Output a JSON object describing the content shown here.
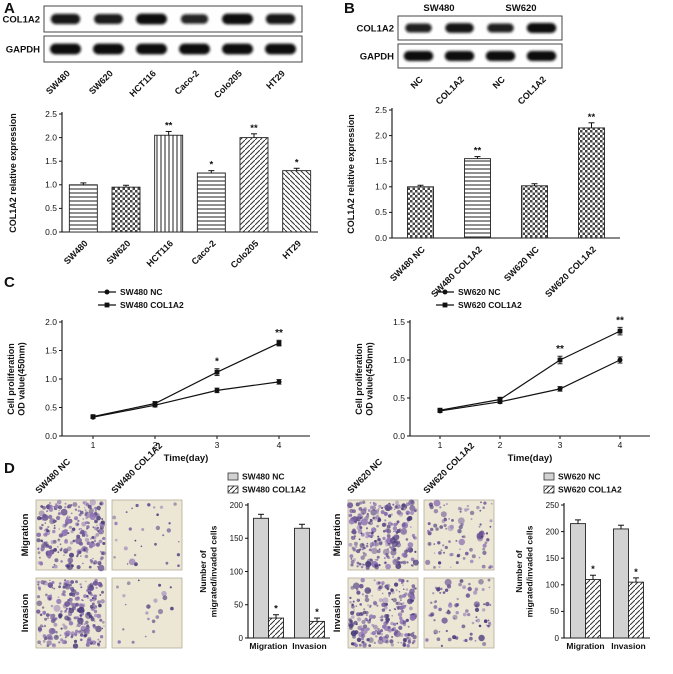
{
  "figure": {
    "panel_letters": {
      "A": "A",
      "B": "B",
      "C": "C",
      "D": "D"
    }
  },
  "colors": {
    "nc_fill": "#d2d2d2",
    "micro_bg": "#ece7d4",
    "stain_palette": [
      "#4a3b7c",
      "#6b5295",
      "#8f74b5"
    ]
  },
  "panelA": {
    "blot": {
      "rows": [
        {
          "label": "COL1A2",
          "intensities": [
            0.85,
            0.8,
            1.0,
            0.65,
            1.0,
            0.85
          ]
        },
        {
          "label": "GAPDH",
          "intensities": [
            1,
            1,
            1,
            1,
            1,
            1
          ]
        }
      ],
      "lane_labels": [
        "SW480",
        "SW620",
        "HCT116",
        "Caco-2",
        "Colo205",
        "HT29"
      ]
    }
  },
  "panelB": {
    "blot": {
      "group_labels": [
        "SW480",
        "SW620"
      ],
      "rows": [
        {
          "label": "COL1A2",
          "intensities": [
            0.7,
            0.9,
            0.7,
            1.0
          ]
        },
        {
          "label": "GAPDH",
          "intensities": [
            1,
            1,
            1,
            1
          ]
        }
      ],
      "lane_labels": [
        "NC",
        "COL1A2",
        "NC",
        "COL1A2"
      ]
    }
  },
  "panelD": {
    "blocks": [
      {
        "col_labels": [
          "SW480 NC",
          "SW480 COL1A2"
        ],
        "row_labels": [
          "Migration",
          "Invasion"
        ],
        "cell_densities": [
          260,
          30,
          240,
          22
        ]
      },
      {
        "col_labels": [
          "SW620 NC",
          "SW620 COL1A2"
        ],
        "row_labels": [
          "Migration",
          "Invasion"
        ],
        "cell_densities": [
          260,
          95,
          235,
          85
        ]
      }
    ]
  },
  "chart_data": [
    {
      "id": "panel-a-bar",
      "type": "bar",
      "categories": [
        "SW480",
        "SW620",
        "HCT116",
        "Caco-2",
        "Colo205",
        "HT29"
      ],
      "values": [
        1.0,
        0.95,
        2.05,
        1.25,
        2.0,
        1.3
      ],
      "errors": [
        0.04,
        0.04,
        0.08,
        0.05,
        0.08,
        0.05
      ],
      "significance": [
        "",
        "",
        "**",
        "*",
        "**",
        "*"
      ],
      "bar_patterns": [
        "hlines",
        "checker",
        "vlines",
        "hlines",
        "diagl",
        "diagr"
      ],
      "ylabel_lines": [
        "COL1A2 relative expression"
      ],
      "ylim": [
        0,
        2.5
      ],
      "yticks": [
        0,
        0.5,
        1,
        1.5,
        2,
        2.5
      ]
    },
    {
      "id": "panel-b-bar",
      "type": "bar",
      "categories": [
        "SW480 NC",
        "SW480 COL1A2",
        "SW620 NC",
        "SW620 COL1A2"
      ],
      "values": [
        1.0,
        1.55,
        1.02,
        2.15
      ],
      "errors": [
        0.03,
        0.04,
        0.04,
        0.1
      ],
      "significance": [
        "",
        "**",
        "",
        "**"
      ],
      "bar_patterns": [
        "checker",
        "hlines",
        "checker",
        "checker"
      ],
      "ylabel_lines": [
        "COL1A2 relative expression"
      ],
      "ylim": [
        0,
        2.5
      ],
      "yticks": [
        0,
        0.5,
        1,
        1.5,
        2,
        2.5
      ]
    },
    {
      "id": "panel-c-sw480",
      "type": "line",
      "x": [
        1,
        2,
        3,
        4
      ],
      "xlabel": "Time(day)",
      "ylabel_lines": [
        "Cell proliferation",
        "OD value(450nm)"
      ],
      "ylim": [
        0,
        2
      ],
      "yticks": [
        0,
        0.5,
        1,
        1.5,
        2
      ],
      "series": [
        {
          "name": "SW480 NC",
          "marker": "circle",
          "values": [
            0.33,
            0.54,
            0.8,
            0.95
          ],
          "errors": [
            0.02,
            0.03,
            0.04,
            0.04
          ]
        },
        {
          "name": "SW480 COL1A2",
          "marker": "square",
          "values": [
            0.34,
            0.57,
            1.12,
            1.63
          ],
          "errors": [
            0.02,
            0.03,
            0.06,
            0.05
          ]
        }
      ],
      "significance": [
        {
          "x": 3,
          "label": "*"
        },
        {
          "x": 4,
          "label": "**"
        }
      ]
    },
    {
      "id": "panel-c-sw620",
      "type": "line",
      "x": [
        1,
        2,
        3,
        4
      ],
      "xlabel": "Time(day)",
      "ylabel_lines": [
        "Cell proliferation",
        "OD value(450nm)"
      ],
      "ylim": [
        0,
        1.5
      ],
      "yticks": [
        0,
        0.5,
        1,
        1.5
      ],
      "series": [
        {
          "name": "SW620 NC",
          "marker": "circle",
          "values": [
            0.33,
            0.45,
            0.62,
            1.0
          ],
          "errors": [
            0.02,
            0.02,
            0.03,
            0.04
          ]
        },
        {
          "name": "SW620 COL1A2",
          "marker": "square",
          "values": [
            0.34,
            0.48,
            1.0,
            1.38
          ],
          "errors": [
            0.02,
            0.03,
            0.05,
            0.05
          ]
        }
      ],
      "significance": [
        {
          "x": 3,
          "label": "**"
        },
        {
          "x": 4,
          "label": "**"
        }
      ]
    },
    {
      "id": "panel-d-sw480",
      "type": "bar",
      "categories": [
        "Migration",
        "Invasion"
      ],
      "series": [
        {
          "name": "SW480 NC",
          "pattern": "solid",
          "values": [
            180,
            165
          ],
          "errors": [
            6,
            6
          ]
        },
        {
          "name": "SW480 COL1A2",
          "pattern": "diagl",
          "values": [
            30,
            25
          ],
          "errors": [
            5,
            5
          ],
          "significance": [
            "*",
            "*"
          ]
        }
      ],
      "ylabel_lines": [
        "Number of",
        "migrated/invaded cells"
      ],
      "ylim": [
        0,
        200
      ],
      "yticks": [
        0,
        50,
        100,
        150,
        200
      ]
    },
    {
      "id": "panel-d-sw620",
      "type": "bar",
      "categories": [
        "Migration",
        "Invasion"
      ],
      "series": [
        {
          "name": "SW620 NC",
          "pattern": "solid",
          "values": [
            215,
            205
          ],
          "errors": [
            7,
            7
          ]
        },
        {
          "name": "SW620 COL1A2",
          "pattern": "diagl",
          "values": [
            110,
            105
          ],
          "errors": [
            8,
            8
          ],
          "significance": [
            "*",
            "*"
          ]
        }
      ],
      "ylabel_lines": [
        "Number of",
        "migrated/invaded cells"
      ],
      "ylim": [
        0,
        250
      ],
      "yticks": [
        0,
        50,
        100,
        150,
        200,
        250
      ]
    }
  ]
}
